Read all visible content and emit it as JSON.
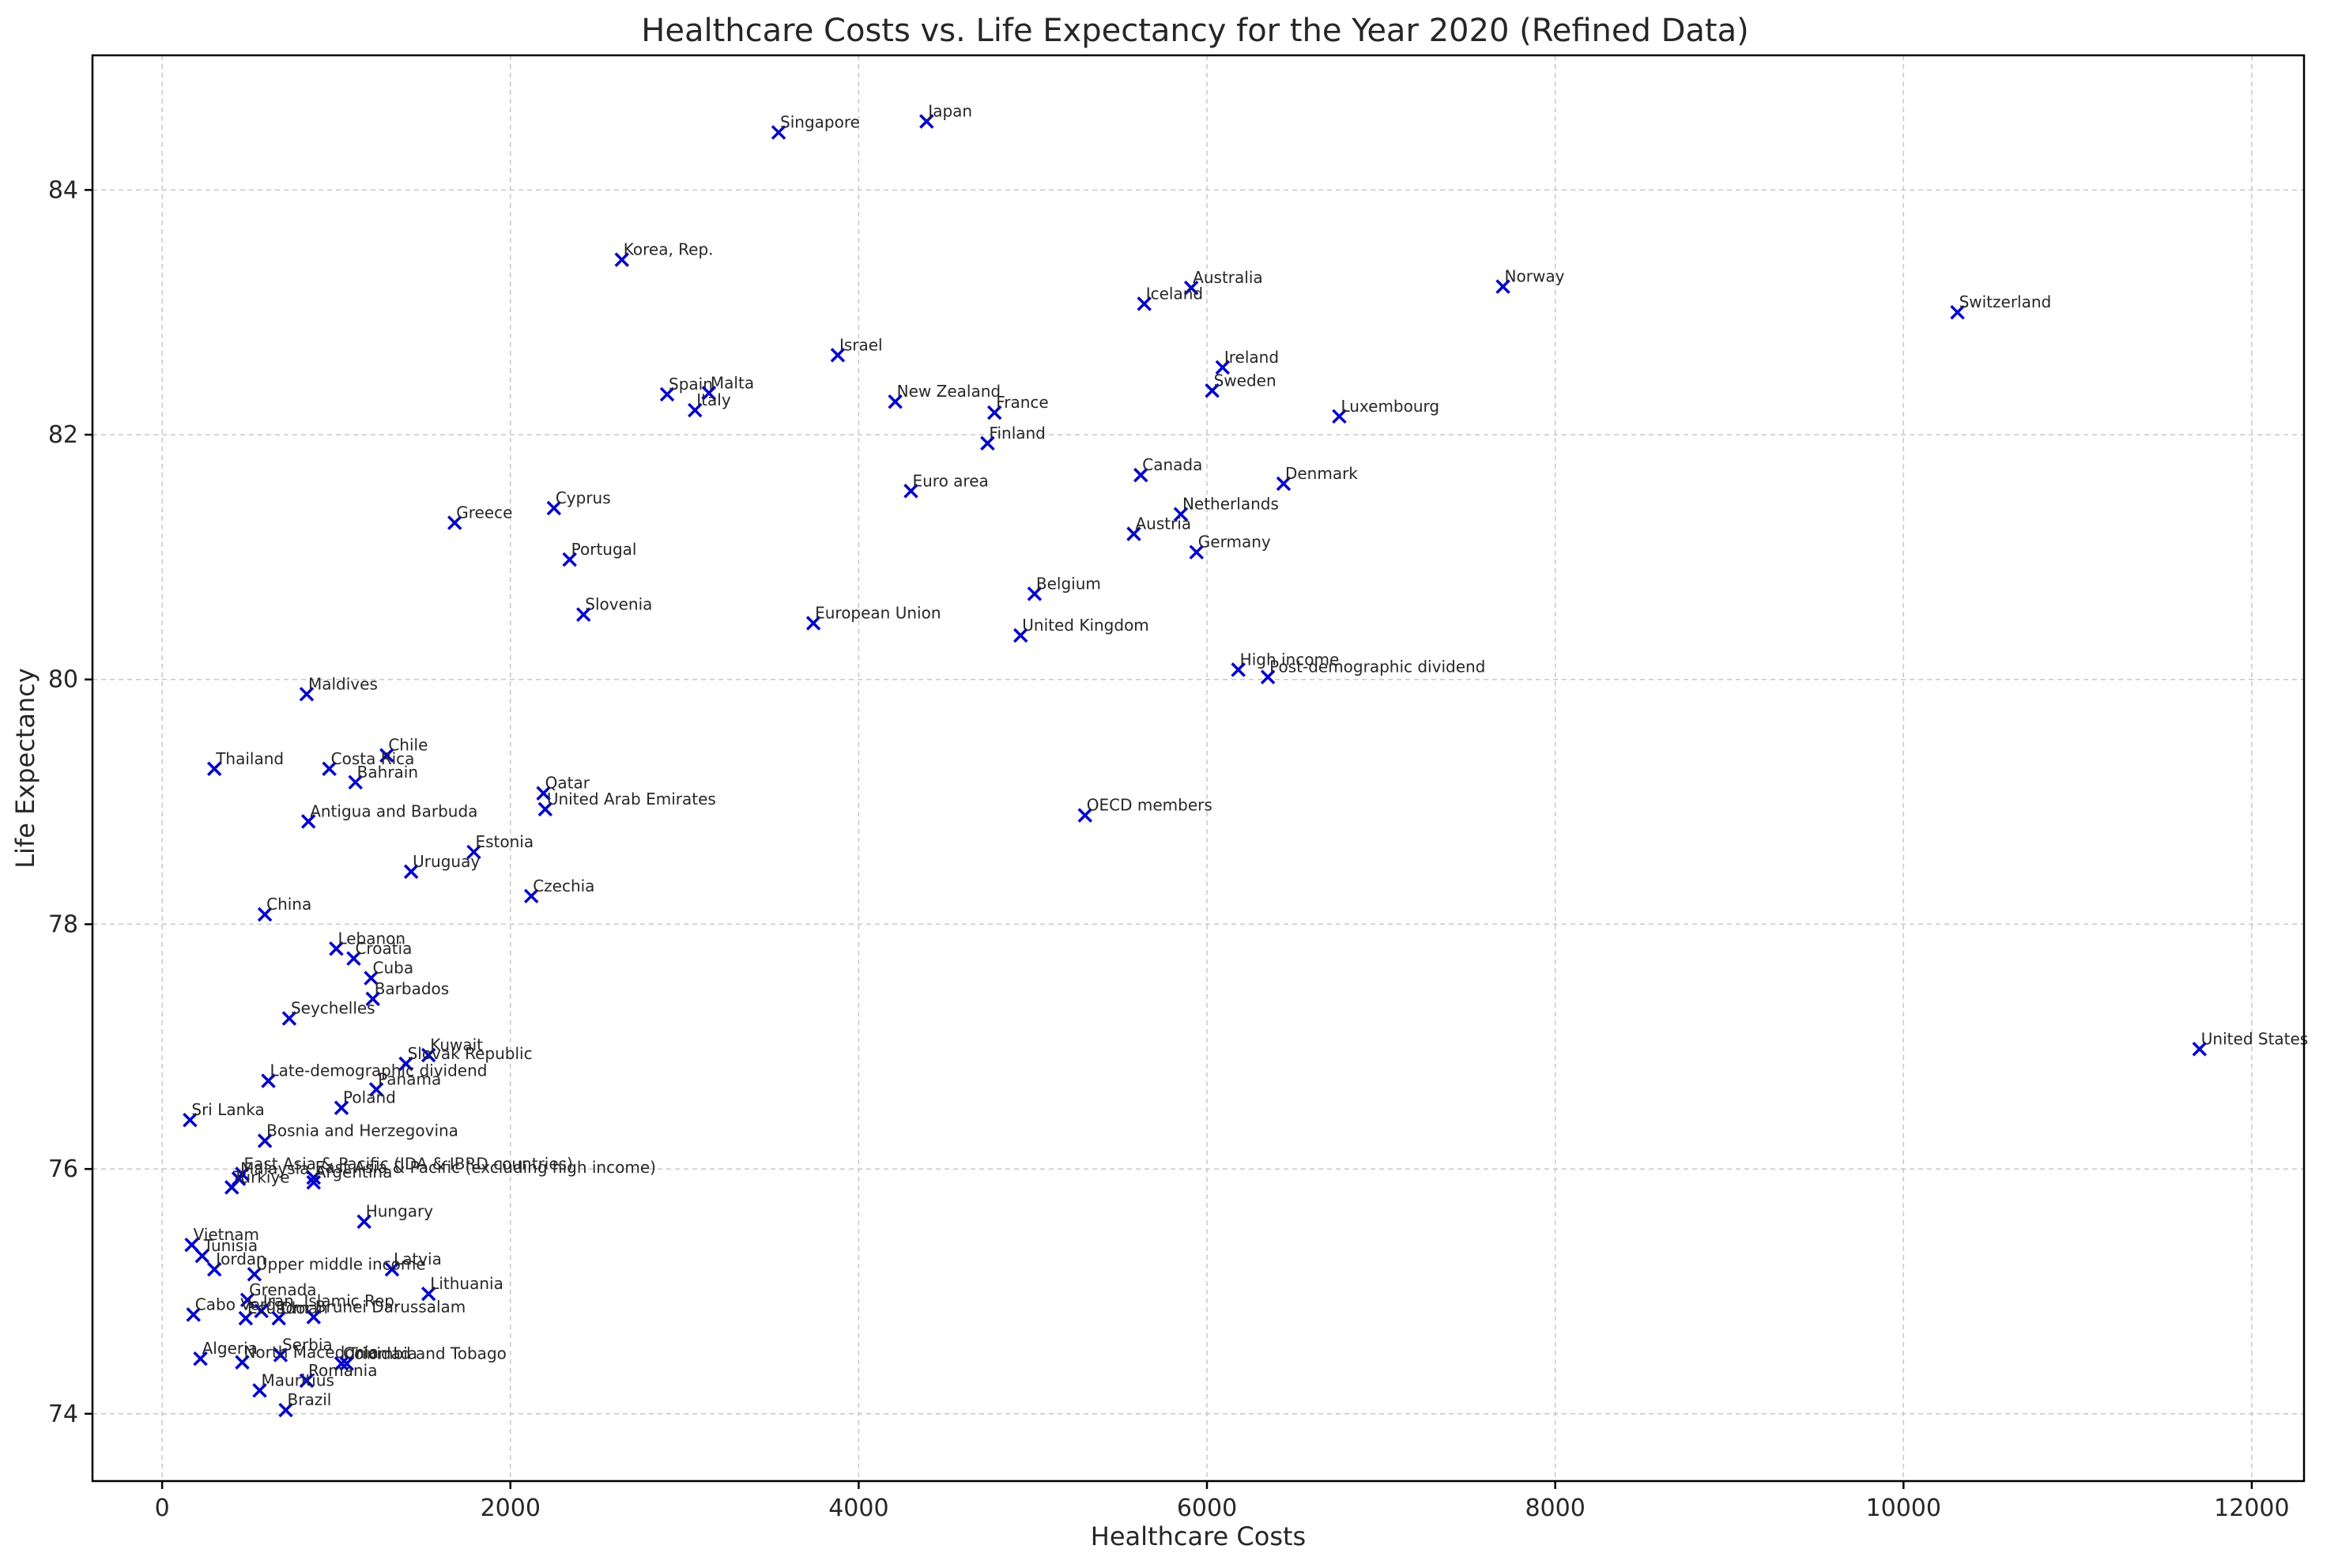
{
  "chart_data": {
    "type": "scatter",
    "title": "Healthcare Costs vs. Life Expectancy for the Year 2020 (Refined Data)",
    "xlabel": "Healthcare Costs",
    "ylabel": "Life Expectancy",
    "xlim": [
      -400,
      12300
    ],
    "ylim": [
      73.45,
      85.1
    ],
    "xticks": [
      0,
      2000,
      4000,
      6000,
      8000,
      10000,
      12000
    ],
    "yticks": [
      74,
      76,
      78,
      80,
      82,
      84
    ],
    "xtick_labels": [
      "0",
      "2000",
      "4000",
      "6000",
      "8000",
      "10000",
      "12000"
    ],
    "ytick_labels": [
      "74",
      "76",
      "78",
      "80",
      "82",
      "84"
    ],
    "grid": true,
    "marker": "x",
    "marker_color": "#0000cc",
    "points": [
      {
        "label": "Japan",
        "x": 4390,
        "y": 84.56
      },
      {
        "label": "Singapore",
        "x": 3540,
        "y": 84.47
      },
      {
        "label": "Korea, Rep.",
        "x": 2640,
        "y": 83.43
      },
      {
        "label": "Australia",
        "x": 5910,
        "y": 83.2
      },
      {
        "label": "Norway",
        "x": 7700,
        "y": 83.21
      },
      {
        "label": "Iceland",
        "x": 5640,
        "y": 83.07
      },
      {
        "label": "Switzerland",
        "x": 10310,
        "y": 83.0
      },
      {
        "label": "Israel",
        "x": 3880,
        "y": 82.65
      },
      {
        "label": "Ireland",
        "x": 6090,
        "y": 82.55
      },
      {
        "label": "Spain",
        "x": 2900,
        "y": 82.33
      },
      {
        "label": "Malta",
        "x": 3140,
        "y": 82.34
      },
      {
        "label": "Sweden",
        "x": 6030,
        "y": 82.36
      },
      {
        "label": "New Zealand",
        "x": 4210,
        "y": 82.27
      },
      {
        "label": "Italy",
        "x": 3060,
        "y": 82.2
      },
      {
        "label": "France",
        "x": 4780,
        "y": 82.18
      },
      {
        "label": "Luxembourg",
        "x": 6760,
        "y": 82.15
      },
      {
        "label": "Finland",
        "x": 4740,
        "y": 81.93
      },
      {
        "label": "Canada",
        "x": 5620,
        "y": 81.67
      },
      {
        "label": "Denmark",
        "x": 6440,
        "y": 81.6
      },
      {
        "label": "Euro area",
        "x": 4300,
        "y": 81.54
      },
      {
        "label": "Cyprus",
        "x": 2250,
        "y": 81.4
      },
      {
        "label": "Netherlands",
        "x": 5850,
        "y": 81.35
      },
      {
        "label": "Greece",
        "x": 1680,
        "y": 81.28
      },
      {
        "label": "Austria",
        "x": 5580,
        "y": 81.19
      },
      {
        "label": "Germany",
        "x": 5940,
        "y": 81.04
      },
      {
        "label": "Portugal",
        "x": 2340,
        "y": 80.98
      },
      {
        "label": "Belgium",
        "x": 5010,
        "y": 80.7
      },
      {
        "label": "Slovenia",
        "x": 2420,
        "y": 80.53
      },
      {
        "label": "European Union",
        "x": 3740,
        "y": 80.46
      },
      {
        "label": "United Kingdom",
        "x": 4930,
        "y": 80.36
      },
      {
        "label": "High income",
        "x": 6180,
        "y": 80.08
      },
      {
        "label": "Post-demographic dividend",
        "x": 6350,
        "y": 80.02
      },
      {
        "label": "Maldives",
        "x": 830,
        "y": 79.88
      },
      {
        "label": "Chile",
        "x": 1290,
        "y": 79.38
      },
      {
        "label": "Thailand",
        "x": 300,
        "y": 79.27
      },
      {
        "label": "Costa Rica",
        "x": 960,
        "y": 79.27
      },
      {
        "label": "Bahrain",
        "x": 1110,
        "y": 79.16
      },
      {
        "label": "Qatar",
        "x": 2190,
        "y": 79.07
      },
      {
        "label": "United Arab Emirates",
        "x": 2200,
        "y": 78.94
      },
      {
        "label": "OECD members",
        "x": 5300,
        "y": 78.89
      },
      {
        "label": "Antigua and Barbuda",
        "x": 840,
        "y": 78.84
      },
      {
        "label": "Estonia",
        "x": 1790,
        "y": 78.59
      },
      {
        "label": "Uruguay",
        "x": 1430,
        "y": 78.43
      },
      {
        "label": "Czechia",
        "x": 2120,
        "y": 78.23
      },
      {
        "label": "China",
        "x": 590,
        "y": 78.08
      },
      {
        "label": "Lebanon",
        "x": 1000,
        "y": 77.8
      },
      {
        "label": "Croatia",
        "x": 1100,
        "y": 77.72
      },
      {
        "label": "Cuba",
        "x": 1200,
        "y": 77.56
      },
      {
        "label": "Barbados",
        "x": 1210,
        "y": 77.39
      },
      {
        "label": "Seychelles",
        "x": 730,
        "y": 77.23
      },
      {
        "label": "United States",
        "x": 11700,
        "y": 76.98
      },
      {
        "label": "Kuwait",
        "x": 1530,
        "y": 76.93
      },
      {
        "label": "Slovak Republic",
        "x": 1400,
        "y": 76.86
      },
      {
        "label": "Late-demographic dividend",
        "x": 610,
        "y": 76.72
      },
      {
        "label": "Panama",
        "x": 1230,
        "y": 76.65
      },
      {
        "label": "Poland",
        "x": 1030,
        "y": 76.5
      },
      {
        "label": "Sri Lanka",
        "x": 160,
        "y": 76.4
      },
      {
        "label": "Bosnia and Herzegovina",
        "x": 590,
        "y": 76.23
      },
      {
        "label": "East Asia & Pacific (IDA & IBRD countries)",
        "x": 460,
        "y": 75.96
      },
      {
        "label": "East Asia & Pacific (excluding high income)",
        "x": 870,
        "y": 75.93
      },
      {
        "label": "Malaysia",
        "x": 440,
        "y": 75.92
      },
      {
        "label": "Argentina",
        "x": 870,
        "y": 75.89
      },
      {
        "label": "Turkiye",
        "x": 400,
        "y": 75.85
      },
      {
        "label": "Hungary",
        "x": 1160,
        "y": 75.57
      },
      {
        "label": "Vietnam",
        "x": 170,
        "y": 75.38
      },
      {
        "label": "Tunisia",
        "x": 230,
        "y": 75.29
      },
      {
        "label": "Jordan",
        "x": 300,
        "y": 75.18
      },
      {
        "label": "Latvia",
        "x": 1320,
        "y": 75.18
      },
      {
        "label": "Upper middle income",
        "x": 530,
        "y": 75.14
      },
      {
        "label": "Lithuania",
        "x": 1530,
        "y": 74.98
      },
      {
        "label": "Grenada",
        "x": 490,
        "y": 74.93
      },
      {
        "label": "Iran, Islamic Rep.",
        "x": 570,
        "y": 74.84
      },
      {
        "label": "Cabo Verde",
        "x": 180,
        "y": 74.81
      },
      {
        "label": "Brunei Darussalam",
        "x": 870,
        "y": 74.79
      },
      {
        "label": "Ecuador",
        "x": 480,
        "y": 74.78
      },
      {
        "label": "Oman",
        "x": 670,
        "y": 74.78
      },
      {
        "label": "Algeria",
        "x": 220,
        "y": 74.45
      },
      {
        "label": "Serbia",
        "x": 680,
        "y": 74.48
      },
      {
        "label": "North Macedonia",
        "x": 460,
        "y": 74.42
      },
      {
        "label": "Colombia",
        "x": 1030,
        "y": 74.41
      },
      {
        "label": "Trinidad and Tobago",
        "x": 1060,
        "y": 74.41
      },
      {
        "label": "Romania",
        "x": 830,
        "y": 74.27
      },
      {
        "label": "Mauritius",
        "x": 560,
        "y": 74.19
      },
      {
        "label": "Brazil",
        "x": 710,
        "y": 74.03
      }
    ]
  }
}
